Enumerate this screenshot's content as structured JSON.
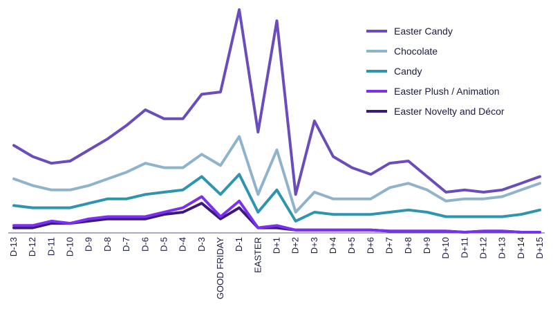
{
  "chart_data": {
    "type": "line",
    "title": "",
    "xlabel": "",
    "ylabel": "",
    "ylim": [
      0,
      100
    ],
    "grid": false,
    "legend_position": "top-right",
    "categories": [
      "D-13",
      "D-12",
      "D-11",
      "D-10",
      "D-9",
      "D-8",
      "D-7",
      "D-6",
      "D-5",
      "D-4",
      "D-3",
      "GOOD FRIDAY",
      "D-1",
      "EASTER",
      "D+1",
      "D+2",
      "D+3",
      "D+4",
      "D+5",
      "D+6",
      "D+7",
      "D+8",
      "D+9",
      "D+10",
      "D+11",
      "D+12",
      "D+13",
      "D+14",
      "D+15"
    ],
    "series": [
      {
        "name": "Easter Candy",
        "color": "#6a4cbc",
        "values": [
          39,
          34,
          31,
          32,
          37,
          42,
          48,
          55,
          51,
          51,
          62,
          63,
          100,
          45,
          95,
          17,
          50,
          34,
          29,
          26,
          31,
          32,
          25,
          18,
          19,
          18,
          19,
          22,
          25
        ]
      },
      {
        "name": "Chocolate",
        "color": "#8fb3cb",
        "values": [
          24,
          21,
          19,
          19,
          21,
          24,
          27,
          31,
          29,
          29,
          35,
          30,
          43,
          17,
          37,
          9,
          18,
          15,
          15,
          15,
          20,
          22,
          19,
          14,
          15,
          15,
          16,
          19,
          22
        ]
      },
      {
        "name": "Candy",
        "color": "#2e95ad",
        "values": [
          12,
          11,
          11,
          11,
          13,
          15,
          15,
          17,
          18,
          19,
          25,
          17,
          26,
          9,
          19,
          5,
          9,
          8,
          8,
          8,
          9,
          10,
          9,
          7,
          7,
          7,
          7,
          8,
          10
        ]
      },
      {
        "name": "Easter Plush / Animation",
        "color": "#7b2ff0",
        "values": [
          3,
          3,
          5,
          4,
          6,
          7,
          7,
          7,
          9,
          11,
          16,
          7,
          14,
          2,
          3,
          1,
          1,
          1,
          1,
          1,
          0.5,
          0.5,
          0.5,
          0.5,
          0,
          0.5,
          0.5,
          0,
          0
        ]
      },
      {
        "name": "Easter Novelty and Décor",
        "color": "#3a1a78",
        "values": [
          2,
          2,
          4,
          4,
          5,
          6,
          6,
          6,
          8,
          9,
          13,
          6,
          11,
          2,
          2,
          1,
          1,
          1,
          1,
          1,
          0.5,
          0.5,
          0.5,
          0.5,
          0,
          0.5,
          0.5,
          0,
          0
        ]
      }
    ]
  }
}
